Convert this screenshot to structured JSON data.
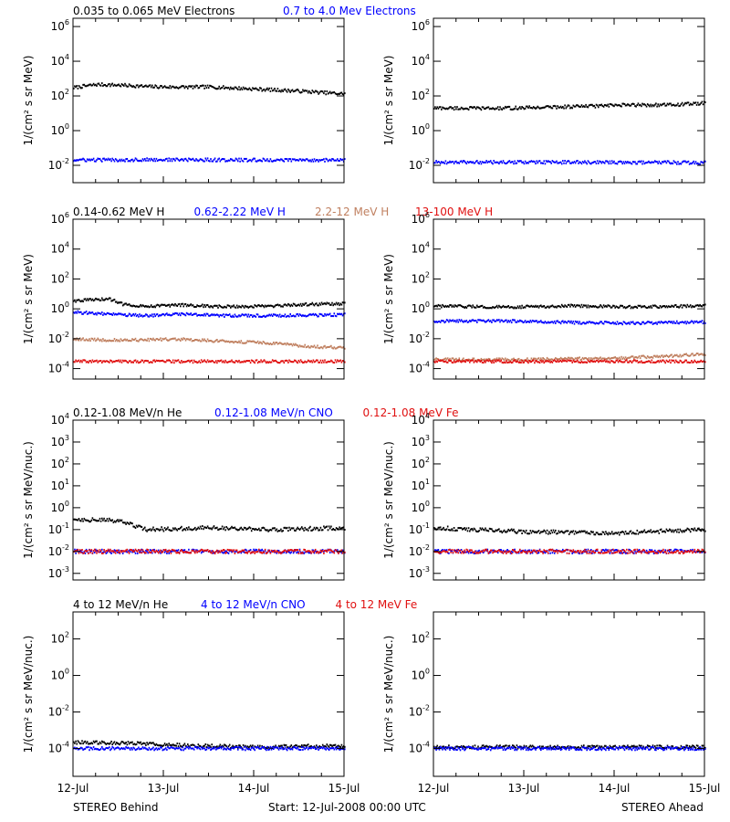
{
  "figure": {
    "footer_left": "STEREO Behind",
    "footer_center": "Start: 12-Jul-2008 00:00 UTC",
    "footer_right": "STEREO Ahead",
    "x_ticks": [
      "12-Jul",
      "13-Jul",
      "14-Jul",
      "15-Jul"
    ]
  },
  "chart_data": [
    {
      "row": 1,
      "spacecraft": "STEREO Behind",
      "type": "scatter",
      "ylabel": "1/(cm² s sr MeV)",
      "yscale": "log",
      "ylim": [
        0.001,
        3000000
      ],
      "xlim": [
        0,
        3
      ],
      "y_ticks": [
        {
          "v": 0.01,
          "b": "10",
          "e": "-2"
        },
        {
          "v": 1,
          "b": "10",
          "e": "0"
        },
        {
          "v": 100,
          "b": "10",
          "e": "2"
        },
        {
          "v": 10000,
          "b": "10",
          "e": "4"
        },
        {
          "v": 1000000,
          "b": "10",
          "e": "6"
        }
      ],
      "legend": [
        {
          "label": "0.035 to 0.065 MeV Electrons",
          "color": "#000000"
        },
        {
          "label": "0.7 to 4.0 Mev Electrons",
          "color": "#0000ff"
        }
      ],
      "series": [
        {
          "name": "0.035 to 0.065 MeV Electrons",
          "color": "#000000",
          "points": [
            [
              0,
              300
            ],
            [
              0.25,
              450
            ],
            [
              0.5,
              420
            ],
            [
              0.8,
              350
            ],
            [
              1.1,
              320
            ],
            [
              1.5,
              330
            ],
            [
              2.0,
              250
            ],
            [
              2.5,
              190
            ],
            [
              3.0,
              130
            ]
          ]
        },
        {
          "name": "0.7 to 4.0 Mev Electrons",
          "color": "#0000ff",
          "points": [
            [
              0,
              0.02
            ],
            [
              1.0,
              0.021
            ],
            [
              2.0,
              0.02
            ],
            [
              3.0,
              0.02
            ]
          ]
        }
      ]
    },
    {
      "row": 1,
      "spacecraft": "STEREO Ahead",
      "type": "scatter",
      "ylabel": "1/(cm² s sr MeV)",
      "yscale": "log",
      "ylim": [
        0.001,
        3000000
      ],
      "xlim": [
        0,
        3
      ],
      "y_ticks": [
        {
          "v": 0.01,
          "b": "10",
          "e": "-2"
        },
        {
          "v": 1,
          "b": "10",
          "e": "0"
        },
        {
          "v": 100,
          "b": "10",
          "e": "2"
        },
        {
          "v": 10000,
          "b": "10",
          "e": "4"
        },
        {
          "v": 1000000,
          "b": "10",
          "e": "6"
        }
      ],
      "legend": [],
      "series": [
        {
          "name": "0.035 to 0.065 MeV Electrons",
          "color": "#000000",
          "points": [
            [
              0,
              20
            ],
            [
              0.7,
              19
            ],
            [
              1.5,
              24
            ],
            [
              2.2,
              30
            ],
            [
              2.6,
              30
            ],
            [
              3.0,
              38
            ]
          ]
        },
        {
          "name": "0.7 to 4.0 Mev Electrons",
          "color": "#0000ff",
          "points": [
            [
              0,
              0.015
            ],
            [
              1.0,
              0.015
            ],
            [
              2.0,
              0.015
            ],
            [
              3.0,
              0.014
            ]
          ]
        }
      ]
    },
    {
      "row": 2,
      "spacecraft": "STEREO Behind",
      "type": "scatter",
      "ylabel": "1/(cm² s sr MeV)",
      "yscale": "log",
      "ylim": [
        2e-05,
        1000000
      ],
      "xlim": [
        0,
        3
      ],
      "y_ticks": [
        {
          "v": 0.0001,
          "b": "10",
          "e": "-4"
        },
        {
          "v": 0.01,
          "b": "10",
          "e": "-2"
        },
        {
          "v": 1,
          "b": "10",
          "e": "0"
        },
        {
          "v": 100,
          "b": "10",
          "e": "2"
        },
        {
          "v": 10000,
          "b": "10",
          "e": "4"
        },
        {
          "v": 1000000,
          "b": "10",
          "e": "6"
        }
      ],
      "legend": [
        {
          "label": "0.14-0.62 MeV H",
          "color": "#000000"
        },
        {
          "label": "0.62-2.22 MeV H",
          "color": "#0000ff"
        },
        {
          "label": "2.2-12 MeV H",
          "color": "#c08060"
        },
        {
          "label": "13-100 MeV H",
          "color": "#e01010"
        }
      ],
      "series": [
        {
          "name": "0.14-0.62 MeV H",
          "color": "#000000",
          "points": [
            [
              0,
              3.5
            ],
            [
              0.4,
              4.5
            ],
            [
              0.55,
              2.0
            ],
            [
              0.8,
              1.5
            ],
            [
              1.2,
              1.8
            ],
            [
              1.6,
              1.4
            ],
            [
              2.2,
              1.5
            ],
            [
              2.6,
              2.0
            ],
            [
              3.0,
              2.2
            ]
          ]
        },
        {
          "name": "0.62-2.22 MeV H",
          "color": "#0000ff",
          "points": [
            [
              0,
              0.6
            ],
            [
              0.5,
              0.4
            ],
            [
              0.8,
              0.35
            ],
            [
              1.2,
              0.45
            ],
            [
              1.6,
              0.35
            ],
            [
              2.2,
              0.35
            ],
            [
              3.0,
              0.4
            ]
          ]
        },
        {
          "name": "2.2-12 MeV H",
          "color": "#c08060",
          "points": [
            [
              0,
              0.009
            ],
            [
              0.5,
              0.008
            ],
            [
              1.2,
              0.009
            ],
            [
              1.6,
              0.007
            ],
            [
              2.2,
              0.005
            ],
            [
              2.6,
              0.003
            ],
            [
              3.0,
              0.0025
            ]
          ]
        },
        {
          "name": "13-100 MeV H",
          "color": "#e01010",
          "points": [
            [
              0,
              0.0003
            ],
            [
              1.0,
              0.0003
            ],
            [
              2.0,
              0.0003
            ],
            [
              3.0,
              0.0003
            ]
          ]
        }
      ]
    },
    {
      "row": 2,
      "spacecraft": "STEREO Ahead",
      "type": "scatter",
      "ylabel": "1/(cm² s sr MeV)",
      "yscale": "log",
      "ylim": [
        2e-05,
        1000000
      ],
      "xlim": [
        0,
        3
      ],
      "y_ticks": [
        {
          "v": 0.0001,
          "b": "10",
          "e": "-4"
        },
        {
          "v": 0.01,
          "b": "10",
          "e": "-2"
        },
        {
          "v": 1,
          "b": "10",
          "e": "0"
        },
        {
          "v": 100,
          "b": "10",
          "e": "2"
        },
        {
          "v": 10000,
          "b": "10",
          "e": "4"
        },
        {
          "v": 1000000,
          "b": "10",
          "e": "6"
        }
      ],
      "legend": [],
      "series": [
        {
          "name": "0.14-0.62 MeV H",
          "color": "#000000",
          "points": [
            [
              0,
              1.5
            ],
            [
              0.8,
              1.3
            ],
            [
              1.6,
              1.6
            ],
            [
              2.2,
              1.3
            ],
            [
              3.0,
              1.6
            ]
          ]
        },
        {
          "name": "0.62-2.22 MeV H",
          "color": "#0000ff",
          "points": [
            [
              0,
              0.15
            ],
            [
              0.8,
              0.15
            ],
            [
              1.6,
              0.12
            ],
            [
              2.2,
              0.11
            ],
            [
              3.0,
              0.13
            ]
          ]
        },
        {
          "name": "2.2-12 MeV H",
          "color": "#c08060",
          "points": [
            [
              0,
              0.0004
            ],
            [
              1.0,
              0.0004
            ],
            [
              2.0,
              0.0005
            ],
            [
              2.6,
              0.0007
            ],
            [
              3.0,
              0.0009
            ]
          ]
        },
        {
          "name": "13-100 MeV H",
          "color": "#e01010",
          "points": [
            [
              0,
              0.0003
            ],
            [
              1.0,
              0.0003
            ],
            [
              2.0,
              0.0003
            ],
            [
              3.0,
              0.0003
            ]
          ]
        }
      ]
    },
    {
      "row": 3,
      "spacecraft": "STEREO Behind",
      "type": "scatter",
      "ylabel": "1/(cm² s sr MeV/nuc.)",
      "yscale": "log",
      "ylim": [
        0.0005,
        10000
      ],
      "xlim": [
        0,
        3
      ],
      "y_ticks": [
        {
          "v": 0.001,
          "b": "10",
          "e": "-3"
        },
        {
          "v": 0.01,
          "b": "10",
          "e": "-2"
        },
        {
          "v": 0.1,
          "b": "10",
          "e": "-1"
        },
        {
          "v": 1,
          "b": "10",
          "e": "0"
        },
        {
          "v": 10,
          "b": "10",
          "e": "1"
        },
        {
          "v": 100,
          "b": "10",
          "e": "2"
        },
        {
          "v": 1000,
          "b": "10",
          "e": "3"
        },
        {
          "v": 10000,
          "b": "10",
          "e": "4"
        }
      ],
      "legend": [
        {
          "label": "0.12-1.08 MeV/n He",
          "color": "#000000"
        },
        {
          "label": "0.12-1.08 MeV/n CNO",
          "color": "#0000ff"
        },
        {
          "label": "0.12-1.08 MeV Fe",
          "color": "#e01010"
        }
      ],
      "series": [
        {
          "name": "0.12-1.08 MeV/n He",
          "color": "#000000",
          "points": [
            [
              0,
              0.3
            ],
            [
              0.5,
              0.25
            ],
            [
              0.8,
              0.1
            ],
            [
              1.5,
              0.12
            ],
            [
              2.2,
              0.1
            ],
            [
              3.0,
              0.12
            ]
          ]
        },
        {
          "name": "0.12-1.08 MeV/n CNO",
          "color": "#0000ff",
          "points": [
            [
              0,
              0.01
            ],
            [
              1.5,
              0.01
            ],
            [
              3.0,
              0.01
            ]
          ]
        },
        {
          "name": "0.12-1.08 MeV Fe",
          "color": "#e01010",
          "points": [
            [
              0,
              0.01
            ],
            [
              1.5,
              0.01
            ],
            [
              3.0,
              0.01
            ]
          ]
        }
      ]
    },
    {
      "row": 3,
      "spacecraft": "STEREO Ahead",
      "type": "scatter",
      "ylabel": "1/(cm² s sr MeV/nuc.)",
      "yscale": "log",
      "ylim": [
        0.0005,
        10000
      ],
      "xlim": [
        0,
        3
      ],
      "y_ticks": [
        {
          "v": 0.001,
          "b": "10",
          "e": "-3"
        },
        {
          "v": 0.01,
          "b": "10",
          "e": "-2"
        },
        {
          "v": 0.1,
          "b": "10",
          "e": "-1"
        },
        {
          "v": 1,
          "b": "10",
          "e": "0"
        },
        {
          "v": 10,
          "b": "10",
          "e": "1"
        },
        {
          "v": 100,
          "b": "10",
          "e": "2"
        },
        {
          "v": 1000,
          "b": "10",
          "e": "3"
        },
        {
          "v": 10000,
          "b": "10",
          "e": "4"
        }
      ],
      "legend": [],
      "series": [
        {
          "name": "0.12-1.08 MeV/n He",
          "color": "#000000",
          "points": [
            [
              0,
              0.12
            ],
            [
              1.0,
              0.08
            ],
            [
              2.0,
              0.07
            ],
            [
              3.0,
              0.1
            ]
          ]
        },
        {
          "name": "0.12-1.08 MeV/n CNO",
          "color": "#0000ff",
          "points": [
            [
              0,
              0.01
            ],
            [
              1.5,
              0.01
            ],
            [
              3.0,
              0.01
            ]
          ]
        },
        {
          "name": "0.12-1.08 MeV Fe",
          "color": "#e01010",
          "points": [
            [
              0,
              0.01
            ],
            [
              1.5,
              0.01
            ],
            [
              3.0,
              0.01
            ]
          ]
        }
      ]
    },
    {
      "row": 4,
      "spacecraft": "STEREO Behind",
      "type": "scatter",
      "ylabel": "1/(cm² s sr MeV/nuc.)",
      "yscale": "log",
      "ylim": [
        3e-06,
        3000
      ],
      "xlim": [
        0,
        3
      ],
      "y_ticks": [
        {
          "v": 0.0001,
          "b": "10",
          "e": "-4"
        },
        {
          "v": 0.01,
          "b": "10",
          "e": "-2"
        },
        {
          "v": 1,
          "b": "10",
          "e": "0"
        },
        {
          "v": 100,
          "b": "10",
          "e": "2"
        }
      ],
      "legend": [
        {
          "label": "4 to 12 MeV/n He",
          "color": "#000000"
        },
        {
          "label": "4 to 12 MeV/n CNO",
          "color": "#0000ff"
        },
        {
          "label": "4 to 12 MeV Fe",
          "color": "#e01010"
        }
      ],
      "series": [
        {
          "name": "4 to 12 MeV/n He",
          "color": "#000000",
          "points": [
            [
              0,
              0.00022
            ],
            [
              0.6,
              0.0002
            ],
            [
              1.2,
              0.00015
            ],
            [
              2.0,
              0.00012
            ],
            [
              2.8,
              0.00014
            ]
          ]
        },
        {
          "name": "4 to 12 MeV/n CNO",
          "color": "#0000ff",
          "points": [
            [
              0,
              0.0001
            ],
            [
              1.5,
              0.0001
            ],
            [
              3.0,
              0.0001
            ]
          ]
        },
        {
          "name": "4 to 12 MeV Fe",
          "color": "#e01010",
          "points": []
        }
      ]
    },
    {
      "row": 4,
      "spacecraft": "STEREO Ahead",
      "type": "scatter",
      "ylabel": "1/(cm² s sr MeV/nuc.)",
      "yscale": "log",
      "ylim": [
        3e-06,
        3000
      ],
      "xlim": [
        0,
        3
      ],
      "y_ticks": [
        {
          "v": 0.0001,
          "b": "10",
          "e": "-4"
        },
        {
          "v": 0.01,
          "b": "10",
          "e": "-2"
        },
        {
          "v": 1,
          "b": "10",
          "e": "0"
        },
        {
          "v": 100,
          "b": "10",
          "e": "2"
        }
      ],
      "legend": [],
      "series": [
        {
          "name": "4 to 12 MeV/n He",
          "color": "#000000",
          "points": [
            [
              0.5,
              0.00012
            ],
            [
              1.5,
              0.00012
            ],
            [
              2.5,
              0.00012
            ]
          ]
        },
        {
          "name": "4 to 12 MeV/n CNO",
          "color": "#0000ff",
          "points": [
            [
              0,
              0.0001
            ],
            [
              1.5,
              0.0001
            ],
            [
              3.0,
              0.0001
            ]
          ]
        },
        {
          "name": "4 to 12 MeV Fe",
          "color": "#e01010",
          "points": []
        }
      ]
    }
  ]
}
